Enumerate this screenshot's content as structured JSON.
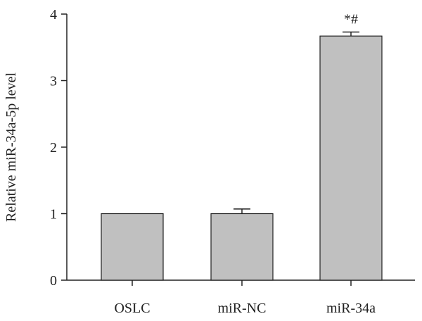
{
  "chart_data": {
    "type": "bar",
    "categories": [
      "OSLC",
      "miR-NC",
      "miR-34a"
    ],
    "values": [
      1.0,
      1.0,
      3.67
    ],
    "errors": [
      0.0,
      0.07,
      0.06
    ],
    "annotations": [
      "",
      "",
      "*#"
    ],
    "title": "",
    "xlabel": "",
    "ylabel": "Relative miR-34a-5p level",
    "ylim": [
      0,
      4
    ],
    "yticks": [
      "0",
      "1",
      "2",
      "3",
      "4"
    ],
    "grid": false,
    "legend": "none"
  },
  "colors": {
    "bar_fill": "#c0c0c0",
    "bar_stroke": "#222222",
    "axis": "#222222"
  }
}
